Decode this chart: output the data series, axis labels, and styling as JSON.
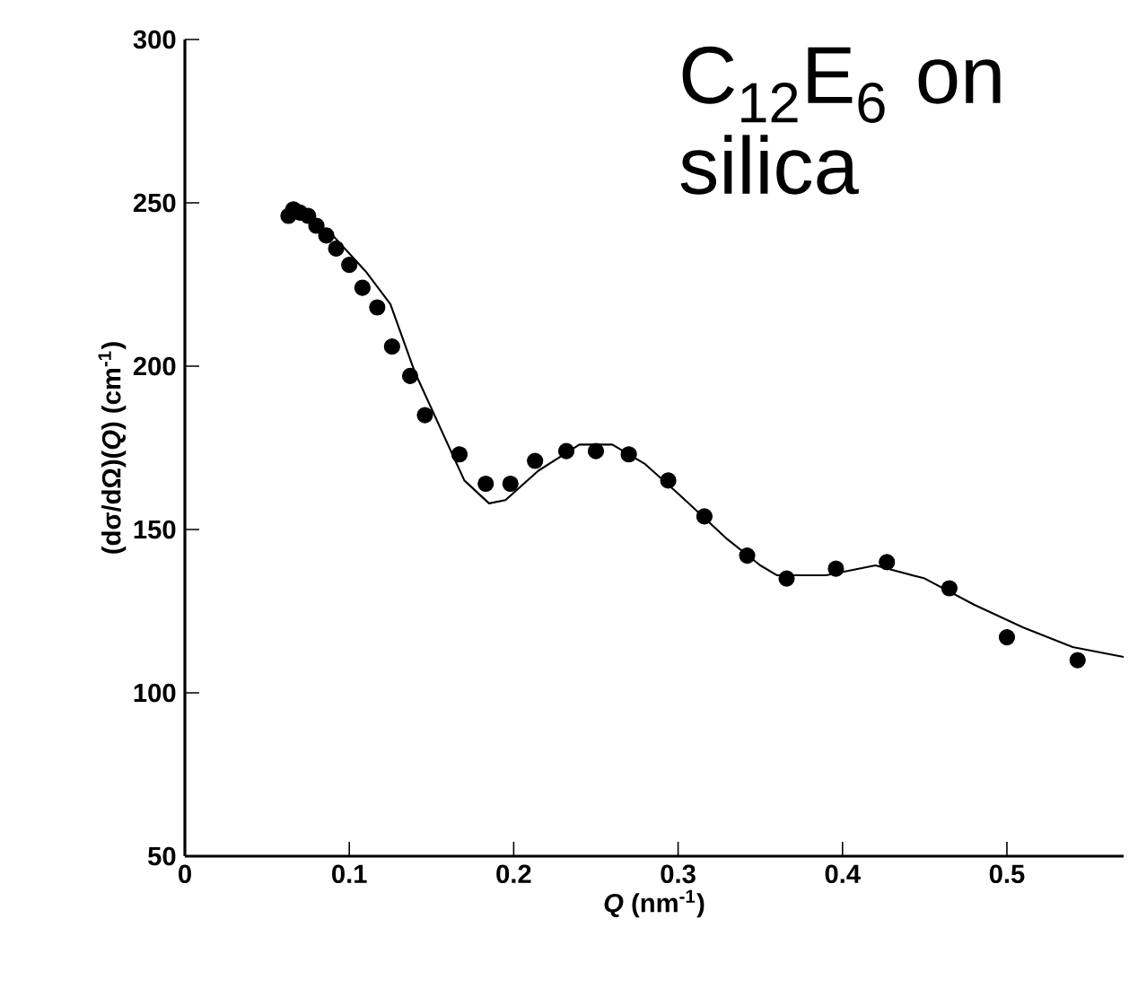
{
  "chart_data": {
    "type": "scatter",
    "xlabel": "*Q*  (nm$^{-1}$)",
    "ylabel": "(dσ/dΩ)(*Q*)  (cm$^{-1}$)",
    "annotations": [
      "C$_{12}$E$_{6}$ on silica"
    ],
    "xlim": [
      0,
      0.571
    ],
    "ylim": [
      50,
      300
    ],
    "xticks": [
      0,
      0.1,
      0.2,
      0.3,
      0.4,
      0.5
    ],
    "yticks": [
      50,
      100,
      150,
      200,
      250,
      300
    ],
    "grid": false,
    "series": [
      {
        "marker": "circle",
        "color": "#000000",
        "x": [
          0.063,
          0.066,
          0.07,
          0.075,
          0.08,
          0.086,
          0.092,
          0.1,
          0.108,
          0.117,
          0.126,
          0.137,
          0.146,
          0.167,
          0.183,
          0.198,
          0.213,
          0.232,
          0.25,
          0.27,
          0.294,
          0.316,
          0.342,
          0.366,
          0.396,
          0.427,
          0.465,
          0.5,
          0.543
        ],
        "values": [
          246,
          248,
          247,
          246,
          243,
          240,
          236,
          231,
          224,
          218,
          206,
          197,
          185,
          173,
          164,
          164,
          171,
          174,
          174,
          173,
          165,
          154,
          142,
          135,
          138,
          140,
          132,
          117,
          110
        ]
      },
      {
        "type": "line",
        "marker": "none",
        "line_style": "solid",
        "color": "#000000",
        "x": [
          0.063,
          0.07,
          0.09,
          0.11,
          0.125,
          0.14,
          0.16,
          0.17,
          0.185,
          0.195,
          0.215,
          0.24,
          0.26,
          0.28,
          0.3,
          0.33,
          0.35,
          0.36,
          0.39,
          0.42,
          0.45,
          0.48,
          0.51,
          0.54,
          0.571
        ],
        "values": [
          247,
          247,
          240,
          229,
          219,
          198,
          176,
          165,
          158,
          159,
          168,
          176,
          176,
          170,
          161,
          147,
          139,
          136,
          136,
          139,
          135,
          127,
          120,
          114,
          111
        ]
      }
    ]
  }
}
